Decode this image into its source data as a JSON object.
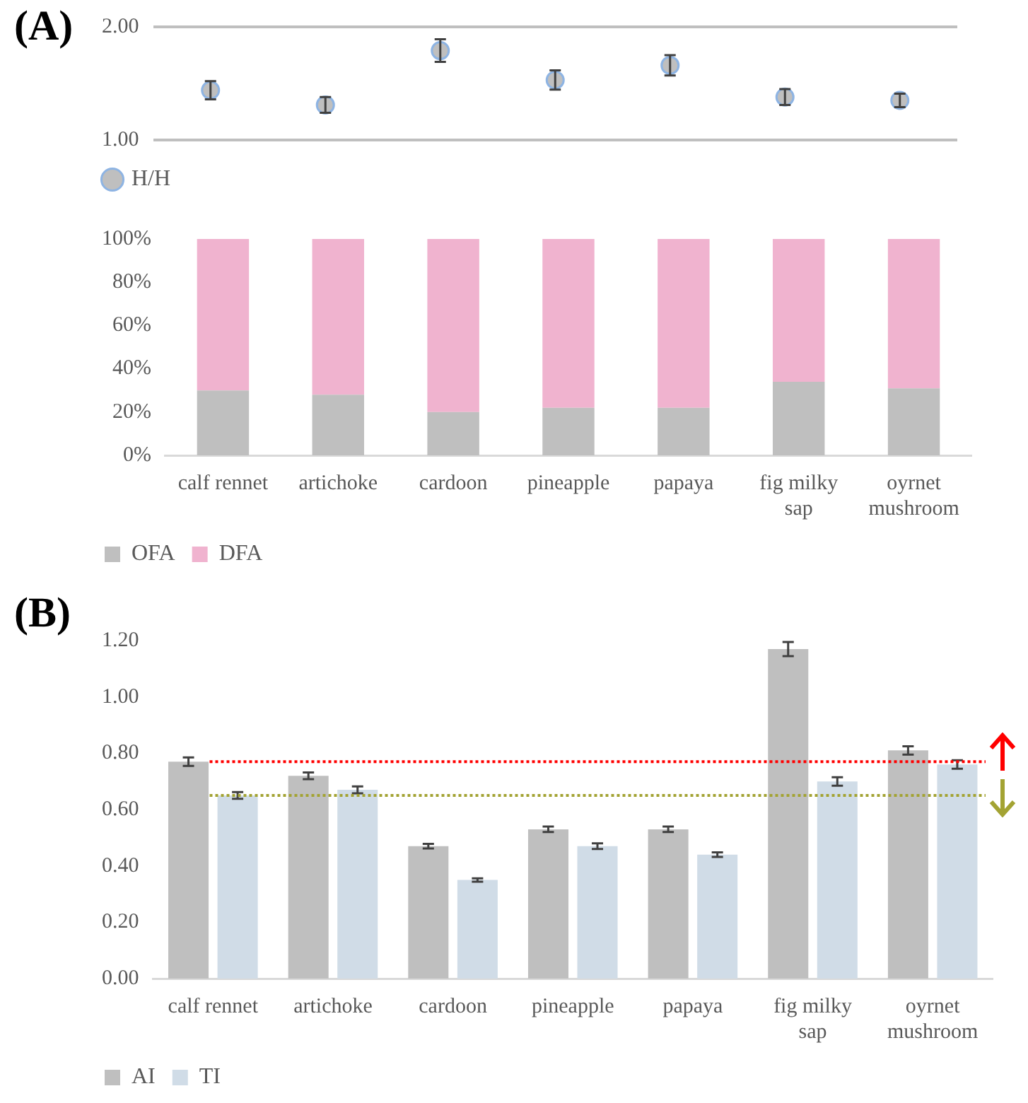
{
  "chart_data": [
    {
      "type": "scatter",
      "title": "(A)",
      "categories": [
        null,
        null,
        null,
        null,
        null,
        null,
        null
      ],
      "series": [
        {
          "name": "H/H",
          "color": "#bfbfbf",
          "values": [
            1.44,
            1.31,
            1.79,
            1.53,
            1.66,
            1.38,
            1.35
          ],
          "errors": [
            0.08,
            0.07,
            0.1,
            0.085,
            0.09,
            0.07,
            0.06
          ]
        }
      ],
      "ylim": [
        1,
        2
      ],
      "yticks": [
        {
          "value": 1,
          "label": "1.00"
        },
        {
          "value": 2,
          "label": "2.00"
        }
      ],
      "grid": "y",
      "tick_labels": "y",
      "marker": "circle",
      "legend": "bottom left"
    },
    {
      "type": "bar",
      "stacked": true,
      "categories": [
        "calf rennet",
        "artichoke",
        "cardoon",
        "pineapple",
        "papaya",
        "fig milky sap",
        "oyrnet mushroom"
      ],
      "series": [
        {
          "name": "OFA",
          "color": "#bfbfbf",
          "values": [
            30,
            28,
            20,
            22,
            22,
            34,
            31
          ]
        },
        {
          "name": "DFA",
          "color": "#f0b3cf",
          "values": [
            70,
            72,
            80,
            78,
            78,
            66,
            69
          ]
        }
      ],
      "ylim": [
        0,
        100
      ],
      "yticks": [
        {
          "value": 0,
          "label": "0%"
        },
        {
          "value": 20,
          "label": "20%"
        },
        {
          "value": 40,
          "label": "40%"
        },
        {
          "value": 60,
          "label": "60%"
        },
        {
          "value": 80,
          "label": "80%"
        },
        {
          "value": 100,
          "label": "100%"
        }
      ],
      "legend": "bottom left"
    },
    {
      "type": "bar",
      "title": "(B)",
      "categories": [
        "calf rennet",
        "artichoke",
        "cardoon",
        "pineapple",
        "papaya",
        "fig milky sap",
        "oyrnet mushroom"
      ],
      "series": [
        {
          "name": "AI",
          "color": "#bfbfbf",
          "values": [
            0.77,
            0.72,
            0.47,
            0.53,
            0.53,
            1.17,
            0.81
          ],
          "errors": [
            0.015,
            0.012,
            0.008,
            0.01,
            0.01,
            0.025,
            0.015
          ]
        },
        {
          "name": "TI",
          "color": "#d0dce7",
          "values": [
            0.65,
            0.67,
            0.35,
            0.47,
            0.44,
            0.7,
            0.76
          ],
          "errors": [
            0.012,
            0.012,
            0.006,
            0.01,
            0.008,
            0.015,
            0.015
          ]
        }
      ],
      "ylim": [
        0,
        1.2
      ],
      "yticks": [
        {
          "value": 0,
          "label": "0.00"
        },
        {
          "value": 0.2,
          "label": "0.20"
        },
        {
          "value": 0.4,
          "label": "0.40"
        },
        {
          "value": 0.6,
          "label": "0.60"
        },
        {
          "value": 0.8,
          "label": "0.80"
        },
        {
          "value": 1,
          "label": "1.00"
        },
        {
          "value": 1.2,
          "label": "1.20"
        }
      ],
      "ref_lines": [
        {
          "axis": "y",
          "value": 0.77,
          "color": "#ff0000",
          "line_style": "dotted"
        },
        {
          "axis": "y",
          "value": 0.65,
          "color": "#a3a333",
          "line_style": "dotted"
        }
      ],
      "legend": "bottom left"
    }
  ]
}
